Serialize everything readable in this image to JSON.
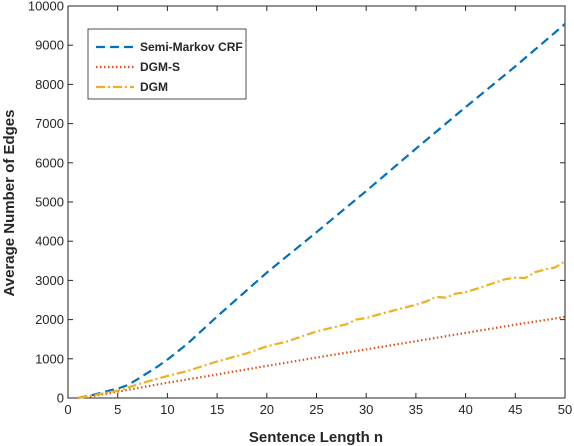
{
  "chart_data": {
    "type": "line",
    "title": "",
    "xlabel": "Sentence Length n",
    "ylabel": "Average Number of Edges",
    "xlim": [
      0,
      50
    ],
    "ylim": [
      0,
      10000
    ],
    "xticks": [
      0,
      5,
      10,
      15,
      20,
      25,
      30,
      35,
      40,
      45,
      50
    ],
    "yticks": [
      0,
      1000,
      2000,
      3000,
      4000,
      5000,
      6000,
      7000,
      8000,
      9000,
      10000
    ],
    "grid": false,
    "legend_position": "top-left",
    "series": [
      {
        "name": "Semi-Markov CRF",
        "color": "#0072BD",
        "dash": "dashed",
        "x": [
          1,
          2,
          3,
          4,
          5,
          6,
          7,
          8,
          9,
          10,
          12,
          15,
          20,
          25,
          30,
          35,
          40,
          45,
          50
        ],
        "y": [
          1,
          50,
          110,
          180,
          240,
          330,
          480,
          640,
          800,
          980,
          1380,
          2080,
          3200,
          4230,
          5280,
          6360,
          7420,
          8460,
          9540
        ]
      },
      {
        "name": "DGM-S",
        "color": "#D95319",
        "dash": "dotted",
        "x": [
          1,
          2,
          3,
          5,
          10,
          15,
          20,
          25,
          30,
          35,
          40,
          45,
          50
        ],
        "y": [
          1,
          30,
          70,
          160,
          390,
          600,
          820,
          1030,
          1240,
          1450,
          1660,
          1870,
          2070
        ]
      },
      {
        "name": "DGM",
        "color": "#EDB120",
        "dash": "dash-dot",
        "x": [
          1,
          2,
          3,
          5,
          8,
          10,
          12,
          15,
          18,
          20,
          22,
          25,
          28,
          29,
          30,
          32,
          35,
          36,
          37,
          38,
          39,
          40,
          42,
          44,
          45,
          46,
          47,
          48,
          49,
          50
        ],
        "y": [
          1,
          40,
          90,
          190,
          420,
          560,
          690,
          930,
          1140,
          1320,
          1440,
          1700,
          1880,
          2000,
          2040,
          2180,
          2380,
          2460,
          2580,
          2560,
          2660,
          2700,
          2860,
          3030,
          3070,
          3060,
          3210,
          3280,
          3330,
          3490
        ]
      }
    ]
  }
}
